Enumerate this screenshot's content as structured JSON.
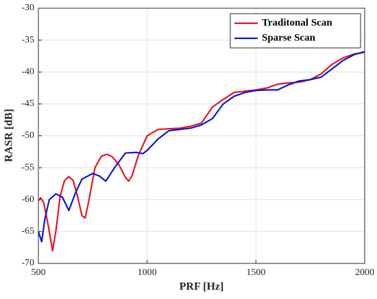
{
  "chart_data": {
    "type": "line",
    "x_label": "PRF [Hz]",
    "y_label": "RASR [dB]",
    "xlim": [
      500,
      2000
    ],
    "xticks": [
      500,
      1000,
      1500,
      2000
    ],
    "ylim": [
      -70,
      -30
    ],
    "yticks": [
      -70,
      -65,
      -60,
      -55,
      -50,
      -45,
      -40,
      -35,
      -30
    ],
    "grid": true,
    "legend": "upper right",
    "series": [
      {
        "name": "Traditonal Scan",
        "color": "#e8141b",
        "x": [
          500,
          510,
          525,
          545,
          565,
          580,
          600,
          620,
          640,
          660,
          680,
          700,
          715,
          730,
          760,
          790,
          815,
          840,
          870,
          900,
          915,
          930,
          960,
          1000,
          1050,
          1100,
          1150,
          1200,
          1250,
          1300,
          1350,
          1400,
          1450,
          1500,
          1550,
          1600,
          1650,
          1700,
          1750,
          1800,
          1850,
          1900,
          1950,
          2000
        ],
        "values": [
          -60.2,
          -59.7,
          -60.5,
          -64,
          -68,
          -65,
          -59.5,
          -57,
          -56.4,
          -57,
          -59.5,
          -62.5,
          -62.9,
          -60.5,
          -55,
          -53.2,
          -52.9,
          -53.3,
          -54.5,
          -56.5,
          -57.1,
          -56.3,
          -53,
          -50,
          -49,
          -48.9,
          -48.8,
          -48.5,
          -48,
          -45.5,
          -44.3,
          -43.2,
          -43,
          -42.8,
          -42.5,
          -41.9,
          -41.7,
          -41.6,
          -41.2,
          -40.3,
          -38.8,
          -37.8,
          -37.2,
          -36.9
        ]
      },
      {
        "name": "Sparse Scan",
        "color": "#0a14d8",
        "x": [
          500,
          515,
          530,
          550,
          580,
          610,
          640,
          670,
          700,
          750,
          780,
          810,
          850,
          900,
          950,
          980,
          1000,
          1050,
          1100,
          1150,
          1200,
          1250,
          1300,
          1350,
          1400,
          1450,
          1500,
          1550,
          1600,
          1650,
          1700,
          1750,
          1800,
          1850,
          1900,
          1950,
          2000
        ],
        "values": [
          -65,
          -66.6,
          -63,
          -60,
          -59.1,
          -59.6,
          -61.7,
          -59,
          -56.8,
          -55.9,
          -56.3,
          -57.1,
          -55,
          -52.7,
          -52.6,
          -52.8,
          -52.3,
          -50.5,
          -49.2,
          -49,
          -48.8,
          -48.3,
          -47.3,
          -45,
          -43.8,
          -43.2,
          -42.9,
          -42.8,
          -42.8,
          -42,
          -41.4,
          -41.2,
          -40.8,
          -39.5,
          -38.2,
          -37.3,
          -36.8
        ]
      }
    ]
  }
}
